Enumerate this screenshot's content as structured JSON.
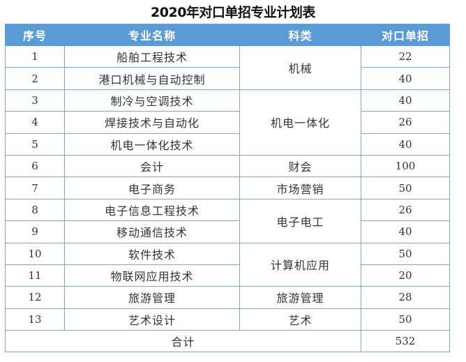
{
  "title": "2020年对口单招专业计划表",
  "colors": {
    "header_bg": "#5b9bd5",
    "header_text": "#ffffff",
    "border": "#7ea6c8"
  },
  "table": {
    "headers": [
      "序号",
      "专业名称",
      "科类",
      "对口单招"
    ],
    "rows": [
      {
        "no": "1",
        "major": "船舶工程技术",
        "category": "机械",
        "quota": "22"
      },
      {
        "no": "2",
        "major": "港口机械与自动控制",
        "category": "机械",
        "quota": "40"
      },
      {
        "no": "3",
        "major": "制冷与空调技术",
        "category": "机电一体化",
        "quota": "40"
      },
      {
        "no": "4",
        "major": "焊接技术与自动化",
        "category": "机电一体化",
        "quota": "26"
      },
      {
        "no": "5",
        "major": "机电一体化技术",
        "category": "机电一体化",
        "quota": "40"
      },
      {
        "no": "6",
        "major": "会计",
        "category": "财会",
        "quota": "100"
      },
      {
        "no": "7",
        "major": "电子商务",
        "category": "市场营销",
        "quota": "50"
      },
      {
        "no": "8",
        "major": "电子信息工程技术",
        "category": "电子电工",
        "quota": "26"
      },
      {
        "no": "9",
        "major": "移动通信技术",
        "category": "电子电工",
        "quota": "40"
      },
      {
        "no": "10",
        "major": "软件技术",
        "category": "计算机应用",
        "quota": "50"
      },
      {
        "no": "11",
        "major": "物联网应用技术",
        "category": "计算机应用",
        "quota": "20"
      },
      {
        "no": "12",
        "major": "旅游管理",
        "category": "旅游管理",
        "quota": "28"
      },
      {
        "no": "13",
        "major": "艺术设计",
        "category": "艺术",
        "quota": "50"
      }
    ],
    "total": {
      "label": "合计",
      "value": "532"
    }
  }
}
